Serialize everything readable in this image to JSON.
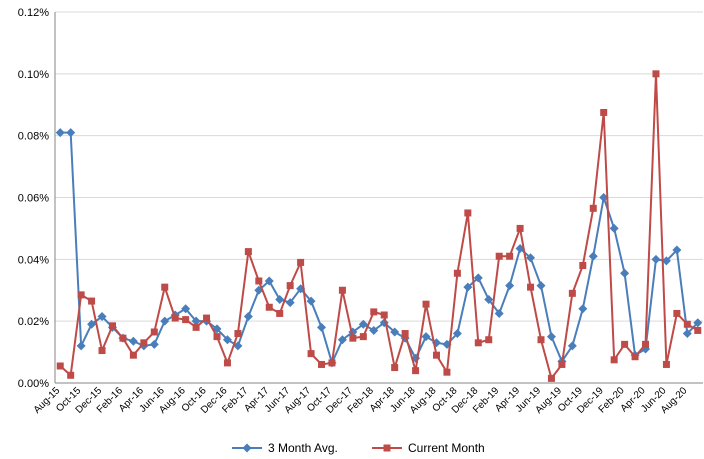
{
  "chart_data": {
    "type": "line",
    "categories": [
      "Aug-15",
      null,
      "Oct-15",
      null,
      "Dec-15",
      null,
      "Feb-16",
      null,
      "Apr-16",
      null,
      "Jun-16",
      null,
      "Aug-16",
      null,
      "Oct-16",
      null,
      "Dec-16",
      null,
      "Feb-17",
      null,
      "Apr-17",
      null,
      "Jun-17",
      null,
      "Aug-17",
      null,
      "Oct-17",
      null,
      "Dec-17",
      null,
      "Feb-18",
      null,
      "Apr-18",
      null,
      "Jun-18",
      null,
      "Aug-18",
      null,
      "Oct-18",
      null,
      "Dec-18",
      null,
      "Feb-19",
      null,
      "Apr-19",
      null,
      "Jun-19",
      null,
      "Aug-19",
      null,
      "Oct-19",
      null,
      "Dec-19",
      null,
      "Feb-20",
      null,
      "Apr-20",
      null,
      "Jun-20",
      null,
      "Aug-20",
      null
    ],
    "series": [
      {
        "name": "3 Month Avg.",
        "color": "#4a7ebb",
        "marker": "diamond",
        "values": [
          0.081,
          0.081,
          0.012,
          0.019,
          0.0215,
          0.018,
          0.0145,
          0.0135,
          0.012,
          0.0125,
          0.02,
          0.022,
          0.024,
          0.02,
          0.02,
          0.0175,
          0.014,
          0.012,
          0.0215,
          0.03,
          0.033,
          0.027,
          0.026,
          0.0305,
          0.0265,
          0.018,
          0.0065,
          0.014,
          0.0165,
          0.019,
          0.017,
          0.0195,
          0.0165,
          0.0145,
          0.008,
          0.015,
          0.013,
          0.0125,
          0.016,
          0.031,
          0.034,
          0.027,
          0.0225,
          0.0315,
          0.0435,
          0.0405,
          0.0315,
          0.015,
          0.007,
          0.012,
          0.024,
          0.041,
          0.06,
          0.05,
          0.0355,
          0.009,
          0.011,
          0.04,
          0.0395,
          0.043,
          0.016,
          0.0195
        ]
      },
      {
        "name": "Current Month",
        "color": "#be4b48",
        "marker": "square",
        "values": [
          0.0055,
          0.0025,
          0.0285,
          0.0265,
          0.0105,
          0.0185,
          0.0145,
          0.009,
          0.013,
          0.0165,
          0.031,
          0.021,
          0.0205,
          0.018,
          0.021,
          0.015,
          0.0065,
          0.016,
          0.0425,
          0.033,
          0.0245,
          0.0225,
          0.0315,
          0.039,
          0.0095,
          0.006,
          0.0065,
          0.03,
          0.0145,
          0.015,
          0.023,
          0.022,
          0.005,
          0.016,
          0.004,
          0.0255,
          0.009,
          0.0035,
          0.0355,
          0.055,
          0.013,
          0.014,
          0.041,
          0.041,
          0.05,
          0.031,
          0.014,
          0.0015,
          0.006,
          0.029,
          0.038,
          0.0565,
          0.0875,
          0.0075,
          0.0125,
          0.0085,
          0.0125,
          0.1,
          0.006,
          0.0225,
          0.019,
          0.017
        ]
      }
    ],
    "ylim": [
      0,
      0.12
    ],
    "yticks": [
      {
        "value": 0,
        "label": "0.00%"
      },
      {
        "value": 0.02,
        "label": "0.02%"
      },
      {
        "value": 0.04,
        "label": "0.04%"
      },
      {
        "value": 0.06,
        "label": "0.06%"
      },
      {
        "value": 0.08,
        "label": "0.08%"
      },
      {
        "value": 0.1,
        "label": "0.10%"
      },
      {
        "value": 0.12,
        "label": "0.12%"
      }
    ],
    "grid": true,
    "legend": "bottom"
  }
}
